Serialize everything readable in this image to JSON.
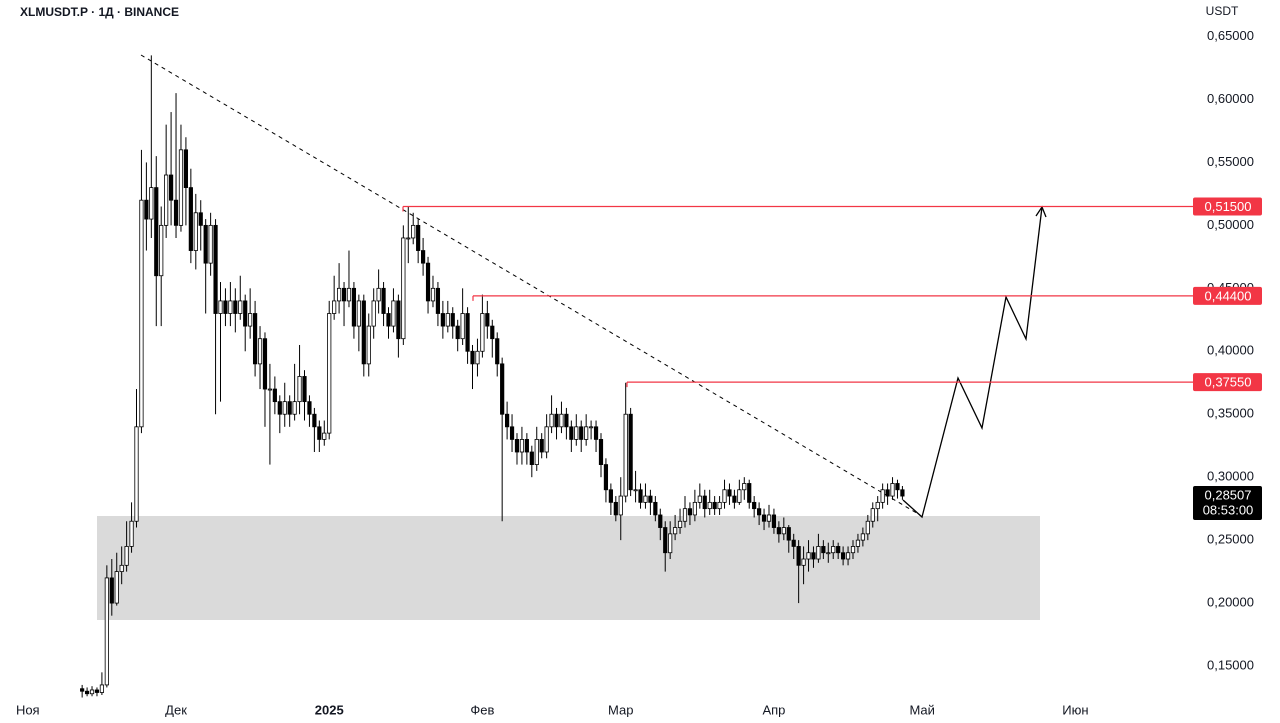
{
  "chart_data": {
    "type": "candlestick",
    "title": "XLMUSDT.P · 1Д · BINANCE",
    "unit": "USDT",
    "up_color": "#ffffff",
    "down_color": "#000000",
    "edge_color": "#000000",
    "xlim": [
      -3.6,
      235.2
    ],
    "ylim": [
      0.127,
      0.679
    ],
    "xticks": [
      {
        "value": 0,
        "label": "Ноя"
      },
      {
        "value": 30,
        "label": "Дек"
      },
      {
        "value": 61,
        "label": "2025"
      },
      {
        "value": 92,
        "label": "Фев"
      },
      {
        "value": 120,
        "label": "Мар"
      },
      {
        "value": 151,
        "label": "Апр"
      },
      {
        "value": 181,
        "label": "Май"
      },
      {
        "value": 212,
        "label": "Июн"
      }
    ],
    "yticks": [
      {
        "value": 0.15,
        "label": "0,15000"
      },
      {
        "value": 0.2,
        "label": "0,20000"
      },
      {
        "value": 0.25,
        "label": "0,25000"
      },
      {
        "value": 0.3,
        "label": "0,30000"
      },
      {
        "value": 0.35,
        "label": "0,35000"
      },
      {
        "value": 0.4,
        "label": "0,40000"
      },
      {
        "value": 0.45,
        "label": "0,45000"
      },
      {
        "value": 0.5,
        "label": "0,50000"
      },
      {
        "value": 0.55,
        "label": "0,55000"
      },
      {
        "value": 0.6,
        "label": "0,60000"
      },
      {
        "value": 0.65,
        "label": "0,65000"
      }
    ],
    "levels": [
      {
        "value": 0.515,
        "label": "0,51500",
        "color": "#f23645"
      },
      {
        "value": 0.444,
        "label": "0,44400",
        "color": "#f23645"
      },
      {
        "value": 0.3755,
        "label": "0,37550",
        "color": "#f23645"
      }
    ],
    "last_price": {
      "value": 0.28507,
      "label": "0,28507",
      "countdown": "08:53:00"
    },
    "x": [
      11,
      12,
      13,
      14,
      15,
      16,
      17,
      18,
      19,
      20,
      21,
      22,
      23,
      24,
      25,
      26,
      27,
      28,
      29,
      30,
      31,
      32,
      33,
      34,
      35,
      36,
      37,
      38,
      39,
      40,
      41,
      42,
      43,
      44,
      45,
      46,
      47,
      48,
      49,
      50,
      51,
      52,
      53,
      54,
      55,
      56,
      57,
      58,
      59,
      60,
      61,
      62,
      63,
      64,
      65,
      66,
      67,
      68,
      69,
      70,
      71,
      72,
      73,
      74,
      75,
      76,
      77,
      78,
      79,
      80,
      81,
      82,
      83,
      84,
      85,
      86,
      87,
      88,
      89,
      90,
      91,
      92,
      93,
      94,
      95,
      96,
      97,
      98,
      99,
      100,
      101,
      102,
      103,
      104,
      105,
      106,
      107,
      108,
      109,
      110,
      111,
      112,
      113,
      114,
      115,
      116,
      117,
      118,
      119,
      120,
      121,
      122,
      123,
      124,
      125,
      126,
      127,
      128,
      129,
      130,
      131,
      132,
      133,
      134,
      135,
      136,
      137,
      138,
      139,
      140,
      141,
      142,
      143,
      144,
      145,
      146,
      147,
      148,
      149,
      150,
      151,
      152,
      153,
      154,
      155,
      156,
      157,
      158,
      159,
      160,
      161,
      162,
      163,
      164,
      165,
      166,
      167,
      168,
      169,
      170,
      171,
      172,
      173,
      174,
      175,
      176,
      177
    ],
    "ohlc": [
      [
        0.132,
        0.135,
        0.125,
        0.13
      ],
      [
        0.13,
        0.133,
        0.126,
        0.128
      ],
      [
        0.128,
        0.134,
        0.126,
        0.131
      ],
      [
        0.131,
        0.133,
        0.126,
        0.129
      ],
      [
        0.129,
        0.145,
        0.127,
        0.135
      ],
      [
        0.135,
        0.23,
        0.133,
        0.22
      ],
      [
        0.22,
        0.235,
        0.19,
        0.2
      ],
      [
        0.2,
        0.24,
        0.198,
        0.225
      ],
      [
        0.225,
        0.245,
        0.215,
        0.23
      ],
      [
        0.23,
        0.265,
        0.225,
        0.245
      ],
      [
        0.245,
        0.28,
        0.24,
        0.265
      ],
      [
        0.265,
        0.37,
        0.26,
        0.34
      ],
      [
        0.34,
        0.56,
        0.335,
        0.52
      ],
      [
        0.52,
        0.55,
        0.48,
        0.505
      ],
      [
        0.505,
        0.635,
        0.49,
        0.53
      ],
      [
        0.53,
        0.555,
        0.42,
        0.46
      ],
      [
        0.46,
        0.515,
        0.42,
        0.5
      ],
      [
        0.5,
        0.58,
        0.49,
        0.54
      ],
      [
        0.54,
        0.59,
        0.5,
        0.52
      ],
      [
        0.52,
        0.605,
        0.49,
        0.5
      ],
      [
        0.5,
        0.58,
        0.495,
        0.56
      ],
      [
        0.56,
        0.57,
        0.5,
        0.53
      ],
      [
        0.53,
        0.545,
        0.47,
        0.48
      ],
      [
        0.48,
        0.525,
        0.465,
        0.51
      ],
      [
        0.51,
        0.52,
        0.48,
        0.5
      ],
      [
        0.5,
        0.505,
        0.43,
        0.47
      ],
      [
        0.47,
        0.51,
        0.46,
        0.5
      ],
      [
        0.5,
        0.505,
        0.35,
        0.43
      ],
      [
        0.43,
        0.455,
        0.36,
        0.44
      ],
      [
        0.44,
        0.45,
        0.42,
        0.43
      ],
      [
        0.43,
        0.455,
        0.42,
        0.44
      ],
      [
        0.44,
        0.45,
        0.415,
        0.43
      ],
      [
        0.43,
        0.46,
        0.425,
        0.44
      ],
      [
        0.44,
        0.445,
        0.4,
        0.42
      ],
      [
        0.42,
        0.45,
        0.41,
        0.43
      ],
      [
        0.43,
        0.44,
        0.38,
        0.39
      ],
      [
        0.39,
        0.42,
        0.37,
        0.41
      ],
      [
        0.41,
        0.415,
        0.34,
        0.37
      ],
      [
        0.37,
        0.39,
        0.31,
        0.37
      ],
      [
        0.37,
        0.38,
        0.35,
        0.36
      ],
      [
        0.36,
        0.365,
        0.335,
        0.35
      ],
      [
        0.35,
        0.375,
        0.34,
        0.36
      ],
      [
        0.36,
        0.365,
        0.34,
        0.35
      ],
      [
        0.35,
        0.39,
        0.345,
        0.36
      ],
      [
        0.36,
        0.405,
        0.35,
        0.38
      ],
      [
        0.38,
        0.385,
        0.345,
        0.36
      ],
      [
        0.36,
        0.365,
        0.34,
        0.35
      ],
      [
        0.35,
        0.355,
        0.32,
        0.34
      ],
      [
        0.34,
        0.345,
        0.32,
        0.33
      ],
      [
        0.33,
        0.345,
        0.325,
        0.335
      ],
      [
        0.335,
        0.44,
        0.33,
        0.43
      ],
      [
        0.43,
        0.46,
        0.425,
        0.44
      ],
      [
        0.44,
        0.47,
        0.43,
        0.45
      ],
      [
        0.45,
        0.455,
        0.42,
        0.44
      ],
      [
        0.44,
        0.48,
        0.435,
        0.45
      ],
      [
        0.45,
        0.455,
        0.41,
        0.42
      ],
      [
        0.42,
        0.445,
        0.4,
        0.44
      ],
      [
        0.44,
        0.445,
        0.38,
        0.39
      ],
      [
        0.39,
        0.43,
        0.38,
        0.42
      ],
      [
        0.42,
        0.45,
        0.41,
        0.44
      ],
      [
        0.44,
        0.465,
        0.43,
        0.45
      ],
      [
        0.45,
        0.455,
        0.42,
        0.43
      ],
      [
        0.43,
        0.435,
        0.41,
        0.42
      ],
      [
        0.42,
        0.45,
        0.415,
        0.44
      ],
      [
        0.44,
        0.445,
        0.395,
        0.41
      ],
      [
        0.41,
        0.5,
        0.405,
        0.49
      ],
      [
        0.49,
        0.515,
        0.47,
        0.49
      ],
      [
        0.49,
        0.51,
        0.485,
        0.5
      ],
      [
        0.5,
        0.505,
        0.47,
        0.48
      ],
      [
        0.48,
        0.49,
        0.46,
        0.47
      ],
      [
        0.47,
        0.475,
        0.43,
        0.44
      ],
      [
        0.44,
        0.46,
        0.435,
        0.45
      ],
      [
        0.45,
        0.455,
        0.42,
        0.43
      ],
      [
        0.43,
        0.44,
        0.41,
        0.42
      ],
      [
        0.42,
        0.44,
        0.415,
        0.43
      ],
      [
        0.43,
        0.435,
        0.41,
        0.42
      ],
      [
        0.42,
        0.425,
        0.4,
        0.41
      ],
      [
        0.41,
        0.45,
        0.405,
        0.43
      ],
      [
        0.43,
        0.435,
        0.39,
        0.4
      ],
      [
        0.4,
        0.405,
        0.37,
        0.39
      ],
      [
        0.39,
        0.41,
        0.38,
        0.4
      ],
      [
        0.4,
        0.445,
        0.395,
        0.43
      ],
      [
        0.43,
        0.44,
        0.41,
        0.42
      ],
      [
        0.42,
        0.425,
        0.395,
        0.41
      ],
      [
        0.41,
        0.415,
        0.38,
        0.39
      ],
      [
        0.39,
        0.395,
        0.265,
        0.35
      ],
      [
        0.35,
        0.36,
        0.33,
        0.34
      ],
      [
        0.34,
        0.35,
        0.32,
        0.33
      ],
      [
        0.33,
        0.335,
        0.31,
        0.32
      ],
      [
        0.32,
        0.34,
        0.31,
        0.33
      ],
      [
        0.33,
        0.335,
        0.31,
        0.32
      ],
      [
        0.32,
        0.325,
        0.3,
        0.31
      ],
      [
        0.31,
        0.34,
        0.305,
        0.33
      ],
      [
        0.33,
        0.335,
        0.315,
        0.32
      ],
      [
        0.32,
        0.35,
        0.315,
        0.34
      ],
      [
        0.34,
        0.365,
        0.335,
        0.35
      ],
      [
        0.35,
        0.355,
        0.33,
        0.34
      ],
      [
        0.34,
        0.36,
        0.335,
        0.35
      ],
      [
        0.35,
        0.355,
        0.33,
        0.34
      ],
      [
        0.34,
        0.345,
        0.32,
        0.33
      ],
      [
        0.33,
        0.35,
        0.325,
        0.34
      ],
      [
        0.34,
        0.345,
        0.32,
        0.33
      ],
      [
        0.33,
        0.35,
        0.325,
        0.34
      ],
      [
        0.34,
        0.345,
        0.33,
        0.34
      ],
      [
        0.34,
        0.345,
        0.32,
        0.33
      ],
      [
        0.33,
        0.335,
        0.3,
        0.31
      ],
      [
        0.31,
        0.315,
        0.28,
        0.29
      ],
      [
        0.29,
        0.295,
        0.27,
        0.28
      ],
      [
        0.28,
        0.285,
        0.265,
        0.27
      ],
      [
        0.27,
        0.3,
        0.25,
        0.285
      ],
      [
        0.285,
        0.375,
        0.28,
        0.35
      ],
      [
        0.35,
        0.355,
        0.285,
        0.29
      ],
      [
        0.29,
        0.305,
        0.28,
        0.29
      ],
      [
        0.29,
        0.295,
        0.275,
        0.28
      ],
      [
        0.28,
        0.295,
        0.275,
        0.285
      ],
      [
        0.285,
        0.29,
        0.27,
        0.28
      ],
      [
        0.28,
        0.285,
        0.265,
        0.27
      ],
      [
        0.27,
        0.275,
        0.25,
        0.26
      ],
      [
        0.26,
        0.265,
        0.225,
        0.24
      ],
      [
        0.24,
        0.265,
        0.235,
        0.255
      ],
      [
        0.255,
        0.27,
        0.25,
        0.26
      ],
      [
        0.26,
        0.275,
        0.255,
        0.265
      ],
      [
        0.265,
        0.285,
        0.26,
        0.275
      ],
      [
        0.275,
        0.28,
        0.262,
        0.27
      ],
      [
        0.27,
        0.29,
        0.265,
        0.28
      ],
      [
        0.28,
        0.295,
        0.275,
        0.285
      ],
      [
        0.285,
        0.29,
        0.268,
        0.275
      ],
      [
        0.275,
        0.29,
        0.27,
        0.28
      ],
      [
        0.28,
        0.285,
        0.27,
        0.275
      ],
      [
        0.275,
        0.285,
        0.27,
        0.28
      ],
      [
        0.28,
        0.298,
        0.275,
        0.29
      ],
      [
        0.29,
        0.295,
        0.278,
        0.285
      ],
      [
        0.285,
        0.29,
        0.275,
        0.28
      ],
      [
        0.28,
        0.298,
        0.278,
        0.29
      ],
      [
        0.29,
        0.3,
        0.282,
        0.295
      ],
      [
        0.295,
        0.298,
        0.275,
        0.28
      ],
      [
        0.28,
        0.285,
        0.268,
        0.275
      ],
      [
        0.275,
        0.28,
        0.262,
        0.27
      ],
      [
        0.27,
        0.275,
        0.258,
        0.265
      ],
      [
        0.265,
        0.278,
        0.26,
        0.27
      ],
      [
        0.27,
        0.275,
        0.255,
        0.26
      ],
      [
        0.26,
        0.265,
        0.248,
        0.255
      ],
      [
        0.255,
        0.268,
        0.25,
        0.26
      ],
      [
        0.26,
        0.262,
        0.24,
        0.25
      ],
      [
        0.25,
        0.255,
        0.235,
        0.245
      ],
      [
        0.245,
        0.25,
        0.2,
        0.23
      ],
      [
        0.23,
        0.245,
        0.215,
        0.235
      ],
      [
        0.235,
        0.25,
        0.225,
        0.24
      ],
      [
        0.24,
        0.245,
        0.228,
        0.235
      ],
      [
        0.235,
        0.255,
        0.232,
        0.245
      ],
      [
        0.245,
        0.25,
        0.235,
        0.24
      ],
      [
        0.24,
        0.248,
        0.232,
        0.24
      ],
      [
        0.24,
        0.25,
        0.235,
        0.245
      ],
      [
        0.245,
        0.248,
        0.235,
        0.24
      ],
      [
        0.24,
        0.245,
        0.23,
        0.235
      ],
      [
        0.235,
        0.245,
        0.23,
        0.24
      ],
      [
        0.24,
        0.25,
        0.235,
        0.245
      ],
      [
        0.245,
        0.255,
        0.24,
        0.25
      ],
      [
        0.25,
        0.26,
        0.245,
        0.255
      ],
      [
        0.255,
        0.27,
        0.25,
        0.265
      ],
      [
        0.265,
        0.28,
        0.26,
        0.275
      ],
      [
        0.275,
        0.285,
        0.265,
        0.28
      ],
      [
        0.28,
        0.295,
        0.275,
        0.29
      ],
      [
        0.29,
        0.295,
        0.278,
        0.285
      ],
      [
        0.285,
        0.3,
        0.282,
        0.295
      ],
      [
        0.295,
        0.298,
        0.283,
        0.29
      ],
      [
        0.29,
        0.293,
        0.282,
        0.285
      ]
    ]
  }
}
